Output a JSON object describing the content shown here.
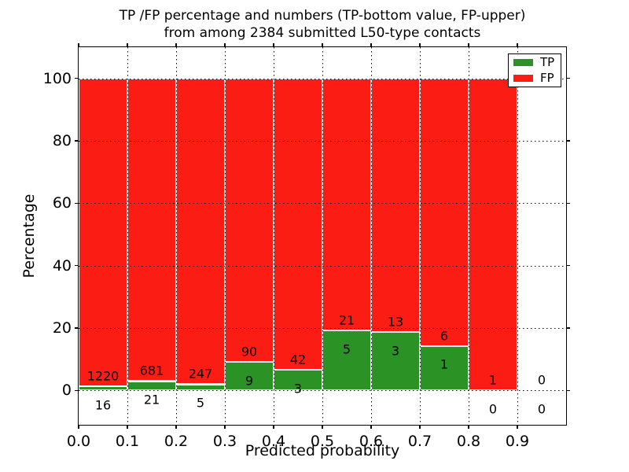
{
  "title": {
    "line1": "TP /FP percentage and numbers (TP-bottom value, FP-upper)",
    "line2": "from among 2384 submitted L50-type contacts"
  },
  "axes": {
    "xlabel": "Predicted probability",
    "ylabel": "Percentage",
    "xlim": [
      0.0,
      1.0
    ],
    "ylim": [
      -11,
      110
    ],
    "x_tick_labels": [
      "0.0",
      "0.1",
      "0.2",
      "0.3",
      "0.4",
      "0.5",
      "0.6",
      "0.7",
      "0.8",
      "0.9"
    ],
    "y_tick_values": [
      0,
      20,
      40,
      60,
      80,
      100
    ],
    "grid_style": "dotted"
  },
  "legend": {
    "position": "upper-right",
    "items": [
      {
        "label": "TP",
        "color": "#2b9226"
      },
      {
        "label": "FP",
        "color": "#fb1d14"
      }
    ]
  },
  "colors": {
    "tp": "#2b9226",
    "fp": "#fb1d14",
    "bar_edge": "#ffffff",
    "grid": "#000000",
    "background": "#ffffff"
  },
  "chart_data": {
    "type": "bar",
    "stacked": true,
    "title": "TP /FP percentage and numbers (TP-bottom value, FP-upper) from among 2384 submitted L50-type contacts",
    "xlabel": "Predicted probability",
    "ylabel": "Percentage",
    "total_contacts": 2384,
    "bin_width": 0.1,
    "ylim": [
      -11,
      110
    ],
    "xlim": [
      0.0,
      1.0
    ],
    "legend_entries": [
      "TP",
      "FP"
    ],
    "bins": [
      {
        "range": [
          0.0,
          0.1
        ],
        "tp_count": 16,
        "fp_count": 1220,
        "tp_pct": 1.29,
        "fp_pct": 98.71
      },
      {
        "range": [
          0.1,
          0.2
        ],
        "tp_count": 21,
        "fp_count": 681,
        "tp_pct": 2.99,
        "fp_pct": 97.01
      },
      {
        "range": [
          0.2,
          0.3
        ],
        "tp_count": 5,
        "fp_count": 247,
        "tp_pct": 1.98,
        "fp_pct": 98.02
      },
      {
        "range": [
          0.3,
          0.4
        ],
        "tp_count": 9,
        "fp_count": 90,
        "tp_pct": 9.09,
        "fp_pct": 90.91
      },
      {
        "range": [
          0.4,
          0.5
        ],
        "tp_count": 3,
        "fp_count": 42,
        "tp_pct": 6.67,
        "fp_pct": 93.33
      },
      {
        "range": [
          0.5,
          0.6
        ],
        "tp_count": 5,
        "fp_count": 21,
        "tp_pct": 19.23,
        "fp_pct": 80.77
      },
      {
        "range": [
          0.6,
          0.7
        ],
        "tp_count": 3,
        "fp_count": 13,
        "tp_pct": 18.75,
        "fp_pct": 81.25
      },
      {
        "range": [
          0.7,
          0.8
        ],
        "tp_count": 1,
        "fp_count": 6,
        "tp_pct": 14.29,
        "fp_pct": 85.71
      },
      {
        "range": [
          0.8,
          0.9
        ],
        "tp_count": 0,
        "fp_count": 1,
        "tp_pct": 0.0,
        "fp_pct": 100.0
      },
      {
        "range": [
          0.9,
          1.0
        ],
        "tp_count": 0,
        "fp_count": 0,
        "tp_pct": 0.0,
        "fp_pct": 0.0
      }
    ]
  }
}
